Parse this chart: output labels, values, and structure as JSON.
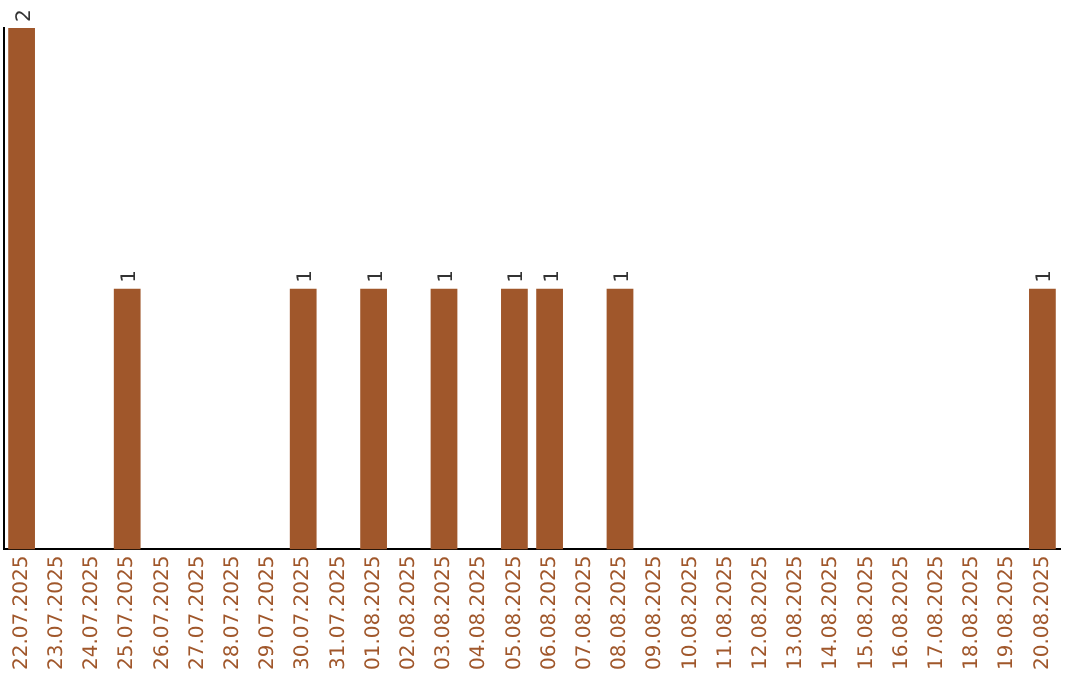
{
  "chart_data": {
    "type": "bar",
    "categories": [
      "22.07.2025",
      "23.07.2025",
      "24.07.2025",
      "25.07.2025",
      "26.07.2025",
      "27.07.2025",
      "28.07.2025",
      "29.07.2025",
      "30.07.2025",
      "31.07.2025",
      "01.08.2025",
      "02.08.2025",
      "03.08.2025",
      "04.08.2025",
      "05.08.2025",
      "06.08.2025",
      "07.08.2025",
      "08.08.2025",
      "09.08.2025",
      "10.08.2025",
      "11.08.2025",
      "12.08.2025",
      "13.08.2025",
      "14.08.2025",
      "15.08.2025",
      "16.08.2025",
      "17.08.2025",
      "18.08.2025",
      "19.08.2025",
      "20.08.2025"
    ],
    "values": [
      2,
      0,
      0,
      1,
      0,
      0,
      0,
      0,
      1,
      0,
      1,
      0,
      1,
      0,
      1,
      1,
      0,
      1,
      0,
      0,
      0,
      0,
      0,
      0,
      0,
      0,
      0,
      0,
      0,
      1
    ],
    "value_labels": [
      "2",
      null,
      null,
      "1",
      null,
      null,
      null,
      null,
      "1",
      null,
      "1",
      null,
      "1",
      null,
      "1",
      "1",
      null,
      "1",
      null,
      null,
      null,
      null,
      null,
      null,
      null,
      null,
      null,
      null,
      null,
      "1"
    ],
    "color": "#a0572b",
    "grid": false,
    "legend": false,
    "tick_labels": "x"
  }
}
